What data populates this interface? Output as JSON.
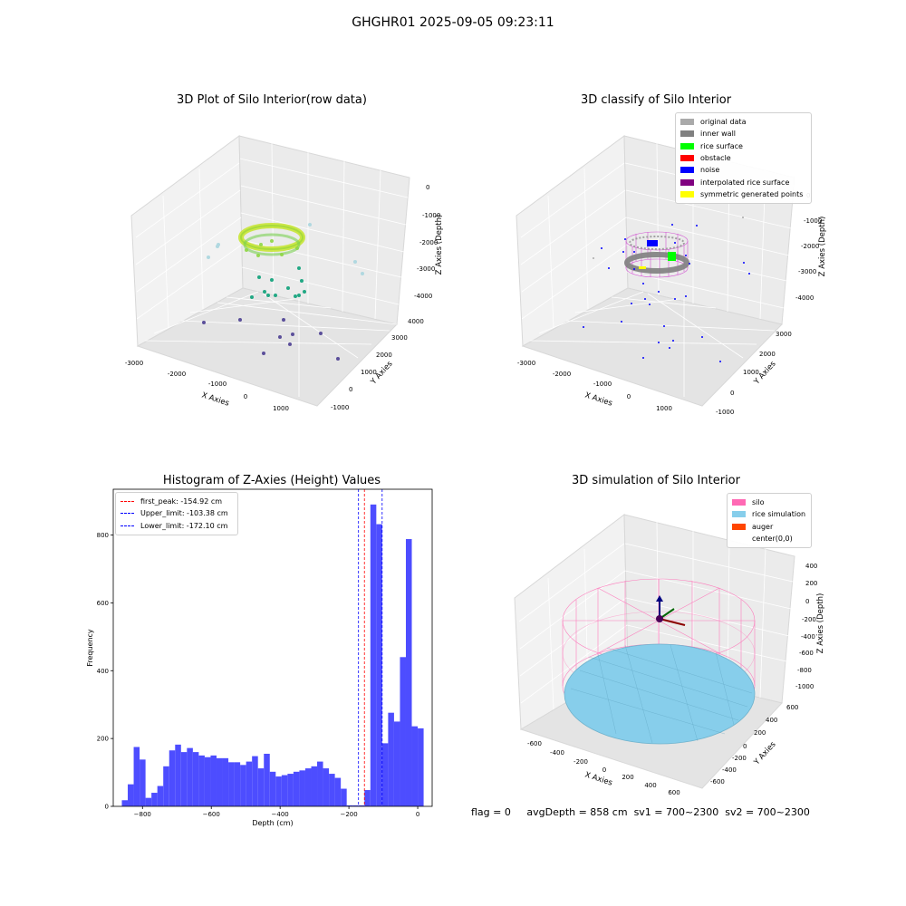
{
  "suptitle": "GHGHR01 2025-09-05 09:23:11",
  "colors": {
    "original_data": "#aaaaaa",
    "inner_wall": "#808080",
    "rice_surface": "#00ff00",
    "obstacle": "#ff0000",
    "noise": "#0000ff",
    "interpolated": "#800080",
    "symmetric": "#ffff00",
    "silo": "#ff69b4",
    "rice_sim": "#87ceeb",
    "auger": "#ff4500",
    "hist_bar": "#4d4dff",
    "first_peak": "#ff0000",
    "limit": "#0000ff"
  },
  "chart_data": [
    {
      "type": "scatter",
      "projection": "3d",
      "title": "3D Plot of Silo Interior(row data)",
      "xlabel": "X Axies",
      "ylabel": "Y Axies",
      "zlabel": "Z Axies (Depth)",
      "xticks": [
        "-3000",
        "-2000",
        "-1000",
        "0",
        "1000"
      ],
      "yticks": [
        "-1000",
        "0",
        "1000",
        "2000",
        "3000",
        "4000"
      ],
      "zticks": [
        "0",
        "-1000",
        "-2000",
        "-3000",
        "-4000"
      ],
      "colormap": "viridis",
      "note": "dense yellow-green ring of points near depth -2000 with scattered teal and purple points below"
    },
    {
      "type": "scatter",
      "projection": "3d",
      "title": "3D classify of Silo Interior",
      "xlabel": "X Axies",
      "ylabel": "Y Axies",
      "zlabel": "Z Axies (Depth)",
      "xticks": [
        "-3000",
        "-2000",
        "-1000",
        "0",
        "1000"
      ],
      "yticks": [
        "-1000",
        "0",
        "1000",
        "2000",
        "3000"
      ],
      "zticks": [
        "0",
        "-1000",
        "-2000",
        "-3000",
        "-4000"
      ],
      "legend": {
        "location": "upper right",
        "entries": [
          {
            "label": "original data",
            "color_key": "original_data"
          },
          {
            "label": "inner wall",
            "color_key": "inner_wall"
          },
          {
            "label": "rice surface",
            "color_key": "rice_surface"
          },
          {
            "label": "obstacle",
            "color_key": "obstacle"
          },
          {
            "label": "noise",
            "color_key": "noise"
          },
          {
            "label": "interpolated rice surface",
            "color_key": "interpolated"
          },
          {
            "label": "symmetric generated points",
            "color_key": "symmetric"
          }
        ]
      }
    },
    {
      "type": "bar",
      "title": "Histogram of Z-Axies (Height) Values",
      "xlabel": "Depth (cm)",
      "ylabel": "Frequency",
      "xlim": [
        -885,
        42
      ],
      "ylim": [
        0,
        935
      ],
      "xticks": [
        -800,
        -600,
        -400,
        -200,
        0
      ],
      "yticks": [
        0,
        200,
        400,
        600,
        800
      ],
      "bin_width": 17.2,
      "bin_start": -860,
      "values": [
        18,
        65,
        175,
        138,
        25,
        40,
        60,
        118,
        165,
        182,
        160,
        172,
        160,
        150,
        145,
        150,
        142,
        142,
        130,
        130,
        122,
        132,
        148,
        112,
        155,
        102,
        88,
        92,
        96,
        102,
        106,
        112,
        118,
        132,
        112,
        96,
        84,
        52,
        3,
        3,
        3,
        48,
        890,
        832,
        186,
        276,
        250,
        440,
        788,
        236,
        230
      ],
      "vlines": [
        {
          "label": "first_peak: -154.92 cm",
          "x": -154.92,
          "color_key": "first_peak"
        },
        {
          "label": "Upper_limit: -103.38 cm",
          "x": -103.38,
          "color_key": "limit"
        },
        {
          "label": "Lower_limit: -172.10 cm",
          "x": -172.1,
          "color_key": "limit"
        }
      ],
      "legend_location": "upper left"
    },
    {
      "type": "scatter",
      "projection": "3d",
      "title": "3D simulation of Silo Interior",
      "xlabel": "X Axies",
      "ylabel": "Y Axies",
      "zlabel": "Z Axies (Depth)",
      "xticks": [
        "-600",
        "-400",
        "-200",
        "0",
        "200",
        "400",
        "600"
      ],
      "yticks": [
        "-600",
        "-400",
        "-200",
        "0",
        "200",
        "400",
        "600"
      ],
      "zticks": [
        "400",
        "200",
        "0",
        "-200",
        "-400",
        "-600",
        "-800",
        "-1000"
      ],
      "legend": {
        "location": "upper right",
        "entries": [
          {
            "label": "silo",
            "color_key": "silo"
          },
          {
            "label": "rice simulation",
            "color_key": "rice_sim"
          },
          {
            "label": "auger",
            "color_key": "auger"
          },
          {
            "label": "center(0,0)",
            "color_key": ""
          }
        ]
      }
    }
  ],
  "footer": {
    "flag": "flag = 0",
    "avg_depth": "avgDepth = 858 cm",
    "sv1": "sv1 = 700~2300",
    "sv2": "sv2 = 700~2300"
  }
}
